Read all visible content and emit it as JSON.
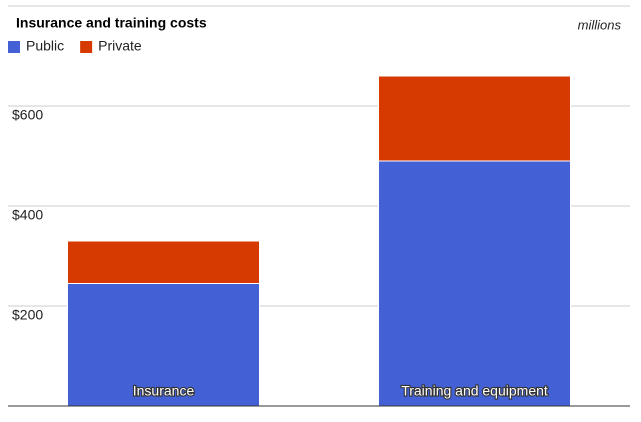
{
  "chart_data": {
    "type": "stacked-bar",
    "title": "Insurance and training costs",
    "annotation": "millions",
    "categories": [
      "Insurance",
      "Training and equipment"
    ],
    "series": [
      {
        "name": "Public",
        "color": "#4361d4",
        "values": [
          245,
          490
        ]
      },
      {
        "name": "Private",
        "color": "#d63a00",
        "values": [
          85,
          170
        ]
      }
    ],
    "ylim": [
      0,
      800
    ],
    "yticks": [
      {
        "value": 200,
        "label": "$200"
      },
      {
        "value": 400,
        "label": "$400"
      },
      {
        "value": 600,
        "label": "$600"
      }
    ],
    "grid": true,
    "legend": "top-left"
  }
}
